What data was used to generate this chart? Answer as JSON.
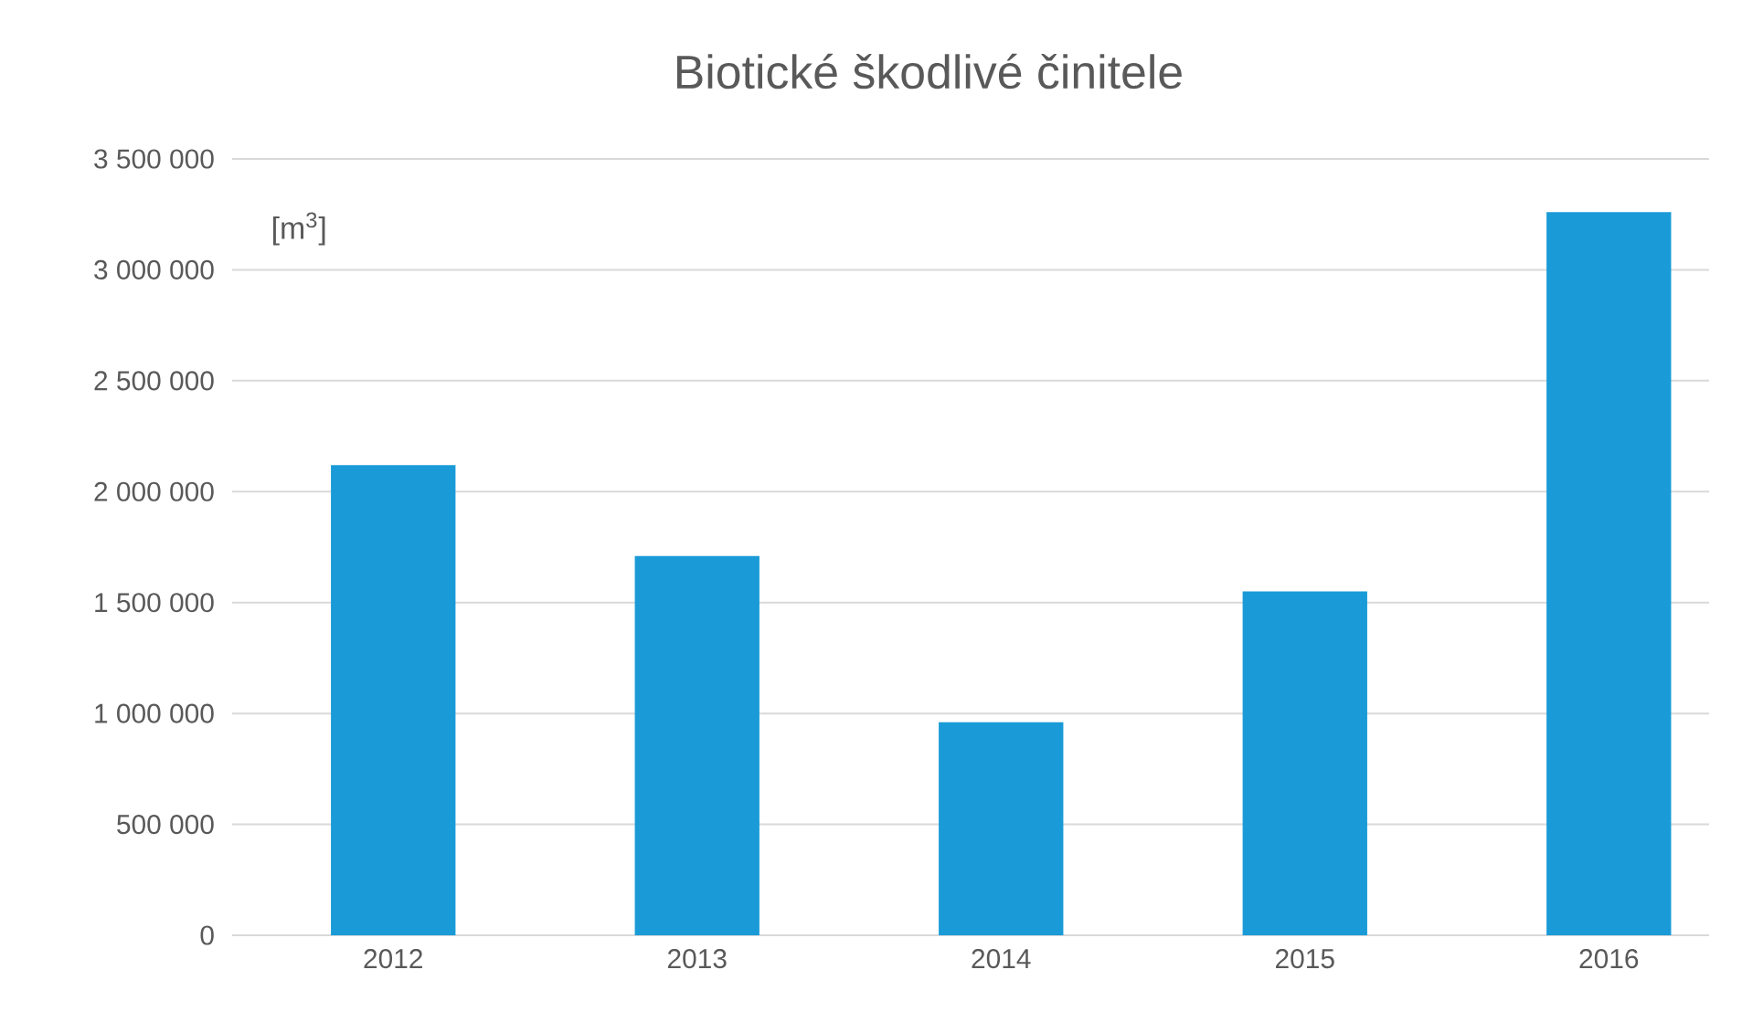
{
  "chart_data": {
    "type": "bar",
    "title": "Biotické škodlivé činitele",
    "ylabel": "[m$^{3}$]",
    "categories": [
      "2012",
      "2013",
      "2014",
      "2015",
      "2016"
    ],
    "values": [
      2120000,
      1710000,
      960000,
      1550000,
      3260000
    ],
    "color": "#1a9bd7",
    "ylim": [
      0,
      3500000
    ],
    "yticks": [
      {
        "value": 0,
        "label": "0"
      },
      {
        "value": 500000,
        "label": "500 000"
      },
      {
        "value": 1000000,
        "label": "1 000 000"
      },
      {
        "value": 1500000,
        "label": "1 500 000"
      },
      {
        "value": 2000000,
        "label": "2 000 000"
      },
      {
        "value": 2500000,
        "label": "2 500 000"
      },
      {
        "value": 3000000,
        "label": "3 000 000"
      },
      {
        "value": 3500000,
        "label": "3 500 000"
      }
    ],
    "grid": "y"
  }
}
